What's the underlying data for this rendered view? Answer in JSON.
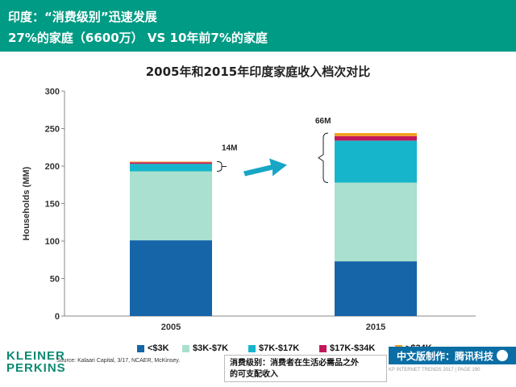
{
  "header": {
    "line1": "印度：“消费级别”迅速发展",
    "line2": "27%的家庭（6600万） VS  10年前7%的家庭"
  },
  "chart_data": {
    "type": "bar",
    "stacked": true,
    "title": "2005年和2015年印度家庭收入档次对比",
    "ylabel": "Households (MM)",
    "xlabel": "",
    "ylim": [
      0,
      300
    ],
    "yticks": [
      0,
      50,
      100,
      150,
      200,
      250,
      300
    ],
    "categories": [
      "2005",
      "2015"
    ],
    "series": [
      {
        "name": "<$3K",
        "color": "#1565a8",
        "values": [
          101,
          73
        ]
      },
      {
        "name": "$3K-$7K",
        "color": "#a9e0cf",
        "values": [
          92,
          105
        ]
      },
      {
        "name": "$7K-$17K",
        "color": "#17b5cc",
        "values": [
          10,
          56
        ]
      },
      {
        "name": "$17K-$34K",
        "color": "#c2185b",
        "values": [
          2,
          6
        ]
      },
      {
        "name": ">$34K",
        "color": "#f39c1f",
        "values": [
          1,
          4
        ]
      }
    ],
    "annotations": [
      "14M",
      "66M"
    ],
    "legend_position": "bottom",
    "grid": false
  },
  "legend_colors": [
    "#1565a8",
    "#a9e0cf",
    "#17b5cc",
    "#c2185b",
    "#f39c1f"
  ],
  "footer": {
    "logo_line1": "KLEINER",
    "logo_line2": "PERKINS",
    "source": "Source: Kalaari Capital, 3/17, NCAER, McKinsey.",
    "note_line1": "消费级别：消费者在生活必需品之外",
    "note_line2": "的可支配收入",
    "credit": "中文版制作：腾讯科技",
    "trend": "KP INTERNET TRENDS 2017  |  PAGE 290"
  }
}
